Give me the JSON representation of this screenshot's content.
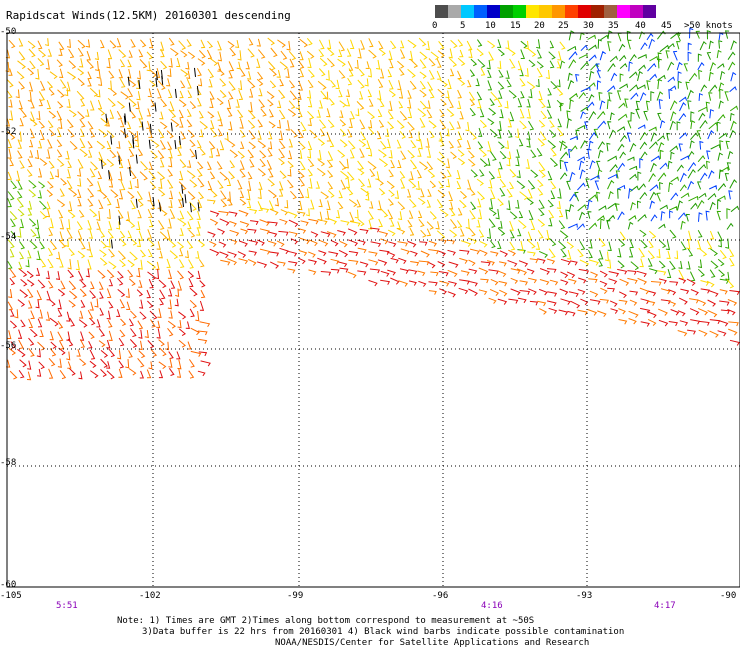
{
  "title": "Rapidscat Winds(12.5KM) 20160301 descending",
  "colorbar": {
    "colors": [
      "#4d4d4d",
      "#a9a9a9",
      "#00c8ff",
      "#0060ff",
      "#0000c8",
      "#00a000",
      "#00d000",
      "#ffe600",
      "#ffc800",
      "#ff9600",
      "#ff4000",
      "#e00000",
      "#a02000",
      "#a06040",
      "#ff00ff",
      "#c000c0",
      "#6000a0"
    ],
    "labels": [
      "0",
      "5",
      "10",
      "15",
      "20",
      "25",
      "30",
      "35",
      "40",
      "45",
      ">50 knots"
    ]
  },
  "lat_labels": [
    "-50",
    "-52",
    "-54",
    "-56",
    "-58",
    "-60"
  ],
  "lon_labels": [
    "-105",
    "-102",
    "-99",
    "-96",
    "-93",
    "-90"
  ],
  "time_labels": [
    "5:51",
    "4:16",
    "4:17"
  ],
  "notes": {
    "line1": "Note: 1) Times are GMT 2)Times along bottom correspond to measurement at ~50S",
    "line2": "3)Data buffer is 22 hrs from 20160301 4) Black wind barbs indicate possible contamination",
    "line3": "NOAA/NESDIS/Center for Satellite Applications and Research"
  }
}
